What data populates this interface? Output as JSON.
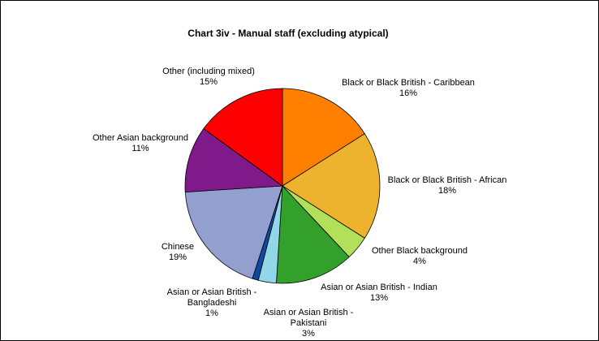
{
  "chart_data": {
    "type": "pie",
    "title": "Chart 3iv - Manual staff (excluding atypical)",
    "legend": "none",
    "slices": [
      {
        "label_lines": [
          "Black or Black British - Caribbean"
        ],
        "pct_text": "16%",
        "value": 16,
        "color": "#FF8000"
      },
      {
        "label_lines": [
          "Black or Black British - African"
        ],
        "pct_text": "18%",
        "value": 18,
        "color": "#EDB32F"
      },
      {
        "label_lines": [
          "Other Black background"
        ],
        "pct_text": "4%",
        "value": 4,
        "color": "#B2E05A"
      },
      {
        "label_lines": [
          "Asian or Asian British - Indian"
        ],
        "pct_text": "13%",
        "value": 13,
        "color": "#33A02C"
      },
      {
        "label_lines": [
          "Asian or Asian British -",
          "Pakistani"
        ],
        "pct_text": "3%",
        "value": 3,
        "color": "#90D8E8"
      },
      {
        "label_lines": [
          "Asian or Asian British -",
          "Bangladeshi"
        ],
        "pct_text": "1%",
        "value": 1,
        "color": "#0A4AA0"
      },
      {
        "label_lines": [
          "Chinese"
        ],
        "pct_text": "19%",
        "value": 19,
        "color": "#939FCF"
      },
      {
        "label_lines": [
          "Other Asian background"
        ],
        "pct_text": "11%",
        "value": 11,
        "color": "#801A8A"
      },
      {
        "label_lines": [
          "Other (including mixed)"
        ],
        "pct_text": "15%",
        "value": 15,
        "color": "#FF0000"
      }
    ]
  }
}
